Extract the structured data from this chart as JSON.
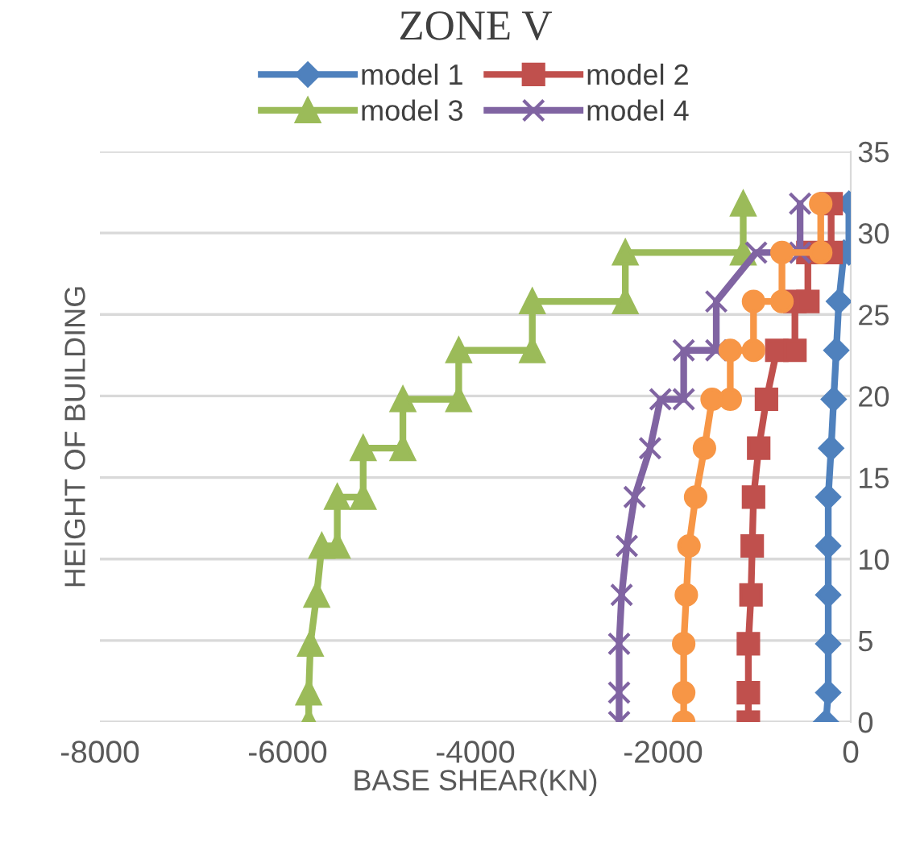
{
  "chart_data": {
    "type": "line",
    "title": "ZONE V",
    "xlabel": "BASE SHEAR(KN)",
    "ylabel": "HEIGHT OF BUILDING",
    "xlim": [
      -8000,
      0
    ],
    "xticks": [
      -8000,
      -6000,
      -4000,
      -2000,
      0
    ],
    "ylim": [
      0,
      35
    ],
    "yticks": [
      0,
      5,
      10,
      15,
      20,
      25,
      30,
      35
    ],
    "grid": "y",
    "legend": "top",
    "line_style": "solid",
    "series": [
      {
        "name": "model 1",
        "color": "#4f81bd",
        "marker": "diamond",
        "x": [
          -264,
          -240,
          -240,
          -240,
          -240,
          -240,
          -209,
          -182,
          -154,
          -127,
          -72,
          -20,
          -20
        ],
        "values": [
          0,
          1.8,
          4.8,
          7.8,
          10.8,
          13.8,
          16.8,
          19.8,
          22.8,
          25.8,
          28.8,
          28.8,
          31.8
        ]
      },
      {
        "name": "model 2",
        "color": "#c0504d",
        "marker": "square",
        "x": [
          -1091,
          -1091,
          -1091,
          -1063,
          -1050,
          -1036,
          -981,
          -898,
          -788,
          -595,
          -595,
          -457,
          -457,
          -209,
          -209
        ],
        "values": [
          0,
          1.8,
          4.8,
          7.8,
          10.8,
          13.8,
          16.8,
          19.8,
          22.8,
          22.8,
          25.8,
          25.8,
          28.8,
          28.8,
          31.8
        ]
      },
      {
        "name": "model 3",
        "color": "#9bbb59",
        "marker": "triangle",
        "x": [
          -5775,
          -5775,
          -5757,
          -5690,
          -5636,
          -5471,
          -5471,
          -5195,
          -5195,
          -4772,
          -4772,
          -4177,
          -4177,
          -3393,
          -3393,
          -2402,
          -2402,
          -1146,
          -1146
        ],
        "values": [
          0,
          1.8,
          4.8,
          7.8,
          10.8,
          10.8,
          13.8,
          13.8,
          16.8,
          16.8,
          19.8,
          19.8,
          22.8,
          22.8,
          25.8,
          25.8,
          28.8,
          28.8,
          31.8
        ]
      },
      {
        "name": "model 4",
        "color": "#8064a2",
        "marker": "cross",
        "x": [
          -2468,
          -2468,
          -2468,
          -2441,
          -2386,
          -2303,
          -2138,
          -2028,
          -1780,
          -1780,
          -1433,
          -1433,
          -1008,
          -540,
          -540
        ],
        "values": [
          0,
          1.8,
          4.8,
          7.8,
          10.8,
          13.8,
          16.8,
          19.8,
          19.8,
          22.8,
          22.8,
          25.8,
          28.8,
          28.8,
          31.8
        ]
      },
      {
        "color": "#f79646",
        "marker": "circle",
        "x": [
          -1780,
          -1780,
          -1780,
          -1752,
          -1724,
          -1653,
          -1559,
          -1477,
          -1284,
          -1284,
          -1036,
          -1036,
          -733,
          -733,
          -320,
          -320
        ],
        "values": [
          0,
          1.8,
          4.8,
          7.8,
          10.8,
          13.8,
          16.8,
          19.8,
          19.8,
          22.8,
          22.8,
          25.8,
          25.8,
          28.8,
          28.8,
          31.8
        ]
      }
    ]
  }
}
